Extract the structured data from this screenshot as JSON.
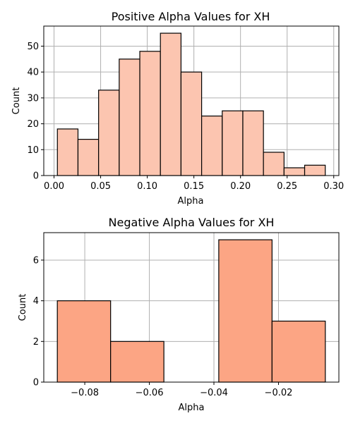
{
  "chart_data": [
    {
      "type": "bar",
      "title": "Positive Alpha Values for XH",
      "xlabel": "Alpha",
      "ylabel": "Count",
      "bin_edges": [
        0.0036,
        0.0257,
        0.0478,
        0.0699,
        0.092,
        0.1141,
        0.1362,
        0.1583,
        0.1804,
        0.2025,
        0.2246,
        0.2467,
        0.2688,
        0.2909
      ],
      "values": [
        18,
        14,
        33,
        45,
        48,
        55,
        40,
        23,
        25,
        25,
        9,
        3,
        4
      ],
      "xlim": [
        -0.011,
        0.3055
      ],
      "ylim": [
        0,
        57.75
      ],
      "xticks": [
        0.0,
        0.05,
        0.1,
        0.15,
        0.2,
        0.25,
        0.3
      ],
      "xtick_labels": [
        "0.00",
        "0.05",
        "0.10",
        "0.15",
        "0.20",
        "0.25",
        "0.30"
      ],
      "yticks": [
        0,
        10,
        20,
        30,
        40,
        50
      ],
      "ytick_labels": [
        "0",
        "10",
        "20",
        "30",
        "40",
        "50"
      ],
      "grid": true,
      "color": "#fcc5b0"
    },
    {
      "type": "bar",
      "title": "Negative Alpha Values for XH",
      "xlabel": "Alpha",
      "ylabel": "Count",
      "bin_edges": [
        -0.0885,
        -0.072,
        -0.0555,
        -0.0385,
        -0.022,
        -0.0055
      ],
      "values": [
        4,
        2,
        0,
        7,
        3
      ],
      "xlim": [
        -0.0927,
        -0.0013
      ],
      "ylim": [
        0,
        7.35
      ],
      "xticks": [
        -0.08,
        -0.06,
        -0.04,
        -0.02
      ],
      "xtick_labels": [
        "−0.08",
        "−0.06",
        "−0.04",
        "−0.02"
      ],
      "yticks": [
        0,
        2,
        4,
        6
      ],
      "ytick_labels": [
        "0",
        "2",
        "4",
        "6"
      ],
      "grid": true,
      "color": "#fca584"
    }
  ]
}
